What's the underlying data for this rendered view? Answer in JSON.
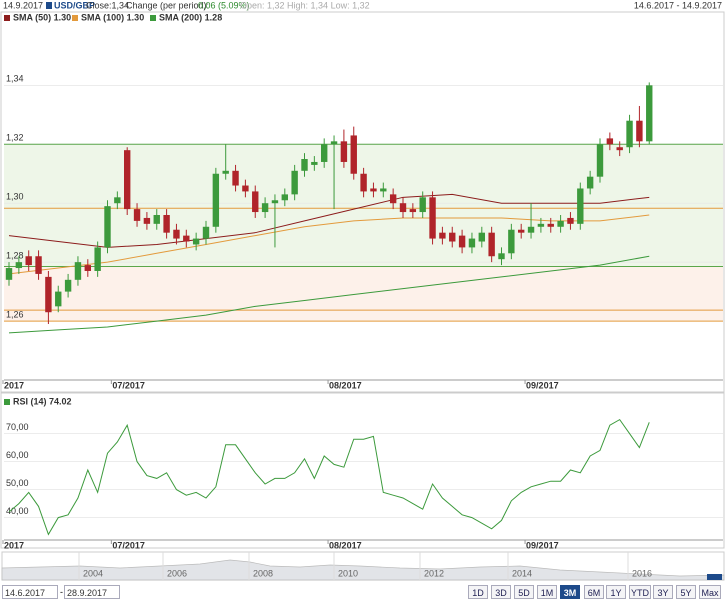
{
  "header": {
    "date": "14.9.2017",
    "symbol": "USD/GBP",
    "close": "Close:1,34",
    "change_label": "Change (per period):",
    "change": "0,06 (5.09%)",
    "ohl": "Open: 1,32 High: 1,34 Low: 1,32",
    "range": "14.6.2017 - 14.9.2017"
  },
  "chart_data": [
    {
      "type": "candlestick",
      "up_color": "#3c9a3c",
      "down_color": "#b0242a",
      "categories": [
        "2017",
        null,
        null,
        null,
        null,
        null,
        null,
        null,
        null,
        null,
        null,
        "07/2017",
        null,
        null,
        null,
        null,
        null,
        null,
        null,
        null,
        null,
        null,
        null,
        null,
        null,
        null,
        null,
        null,
        null,
        null,
        null,
        null,
        null,
        "08/2017",
        null,
        null,
        null,
        null,
        null,
        null,
        null,
        null,
        null,
        null,
        null,
        null,
        null,
        null,
        null,
        null,
        null,
        null,
        null,
        "09/2017",
        null,
        null,
        null,
        null,
        null,
        null,
        null,
        null,
        null,
        null,
        null,
        null
      ],
      "open": [
        1.274,
        1.278,
        1.282,
        1.282,
        1.275,
        1.265,
        1.27,
        1.274,
        1.279,
        1.277,
        1.285,
        1.3,
        1.318,
        1.298,
        1.295,
        1.293,
        1.296,
        1.291,
        1.289,
        1.286,
        1.288,
        1.292,
        1.31,
        1.311,
        1.306,
        1.304,
        1.297,
        1.3,
        1.301,
        1.303,
        1.311,
        1.313,
        1.314,
        1.32,
        1.321,
        1.323,
        1.31,
        1.305,
        1.304,
        1.303,
        1.3,
        1.298,
        1.297,
        1.302,
        1.29,
        1.29,
        1.289,
        1.285,
        1.287,
        1.29,
        1.281,
        1.283,
        1.291,
        1.29,
        1.292,
        1.293,
        1.292,
        1.295,
        1.293,
        1.305,
        1.309,
        1.322,
        1.319,
        1.319,
        1.328,
        1.321
      ],
      "high": [
        1.28,
        1.282,
        1.284,
        1.284,
        1.277,
        1.272,
        1.276,
        1.282,
        1.281,
        1.287,
        1.301,
        1.304,
        1.319,
        1.3,
        1.297,
        1.298,
        1.298,
        1.293,
        1.291,
        1.29,
        1.294,
        1.312,
        1.32,
        1.313,
        1.308,
        1.306,
        1.302,
        1.303,
        1.305,
        1.313,
        1.317,
        1.316,
        1.322,
        1.323,
        1.325,
        1.326,
        1.312,
        1.307,
        1.307,
        1.305,
        1.302,
        1.3,
        1.304,
        1.304,
        1.292,
        1.292,
        1.291,
        1.29,
        1.292,
        1.292,
        1.285,
        1.293,
        1.293,
        1.3,
        1.295,
        1.295,
        1.296,
        1.297,
        1.307,
        1.311,
        1.322,
        1.324,
        1.321,
        1.33,
        1.333,
        1.341
      ],
      "low": [
        1.272,
        1.276,
        1.277,
        1.274,
        1.259,
        1.263,
        1.268,
        1.272,
        1.275,
        1.275,
        1.283,
        1.298,
        1.296,
        1.292,
        1.291,
        1.291,
        1.288,
        1.286,
        1.285,
        1.284,
        1.286,
        1.29,
        1.308,
        1.304,
        1.302,
        1.295,
        1.295,
        1.285,
        1.299,
        1.301,
        1.309,
        1.311,
        1.312,
        1.298,
        1.312,
        1.308,
        1.302,
        1.302,
        1.302,
        1.298,
        1.295,
        1.295,
        1.295,
        1.286,
        1.286,
        1.285,
        1.283,
        1.283,
        1.285,
        1.28,
        1.279,
        1.281,
        1.288,
        1.288,
        1.29,
        1.29,
        1.29,
        1.291,
        1.291,
        1.303,
        1.307,
        1.318,
        1.316,
        1.317,
        1.319,
        1.32
      ],
      "close": [
        1.278,
        1.28,
        1.279,
        1.276,
        1.263,
        1.27,
        1.274,
        1.28,
        1.277,
        1.285,
        1.299,
        1.302,
        1.298,
        1.294,
        1.293,
        1.296,
        1.29,
        1.288,
        1.287,
        1.288,
        1.292,
        1.31,
        1.311,
        1.306,
        1.304,
        1.297,
        1.3,
        1.301,
        1.303,
        1.311,
        1.315,
        1.314,
        1.32,
        1.321,
        1.314,
        1.31,
        1.304,
        1.304,
        1.305,
        1.3,
        1.297,
        1.297,
        1.302,
        1.288,
        1.288,
        1.287,
        1.285,
        1.288,
        1.29,
        1.282,
        1.283,
        1.291,
        1.29,
        1.292,
        1.293,
        1.292,
        1.294,
        1.293,
        1.305,
        1.309,
        1.32,
        1.32,
        1.318,
        1.328,
        1.321,
        1.34
      ],
      "series": [
        {
          "name": "SMA (50) 1.30",
          "color": "#8c1c1c",
          "x": [
            0,
            5,
            10,
            15,
            20,
            25,
            30,
            35,
            40,
            45,
            50,
            55,
            60,
            65
          ],
          "values": [
            1.289,
            1.287,
            1.285,
            1.286,
            1.288,
            1.29,
            1.294,
            1.298,
            1.302,
            1.303,
            1.3,
            1.3,
            1.3,
            1.302
          ]
        },
        {
          "name": "SMA (100) 1.30",
          "color": "#e39a3c",
          "x": [
            0,
            5,
            10,
            15,
            20,
            25,
            30,
            35,
            40,
            45,
            50,
            55,
            60,
            65
          ],
          "values": [
            1.276,
            1.278,
            1.28,
            1.283,
            1.286,
            1.289,
            1.292,
            1.294,
            1.295,
            1.295,
            1.295,
            1.294,
            1.294,
            1.296
          ]
        },
        {
          "name": "SMA (200) 1.28",
          "color": "#3c9a3c",
          "x": [
            0,
            5,
            10,
            15,
            20,
            25,
            30,
            35,
            40,
            45,
            50,
            55,
            60,
            65
          ],
          "values": [
            1.256,
            1.257,
            1.258,
            1.26,
            1.262,
            1.265,
            1.267,
            1.269,
            1.271,
            1.273,
            1.275,
            1.277,
            1.279,
            1.282
          ]
        }
      ],
      "bands": [
        {
          "from": 1.32,
          "to": 1.2785,
          "color": "#eef6e8"
        },
        {
          "from": 1.2785,
          "to": 1.26,
          "color": "#fdf1ea"
        }
      ],
      "levels": [
        {
          "value": 1.32,
          "color": "#5aa64a"
        },
        {
          "value": 1.2785,
          "color": "#5aa64a"
        },
        {
          "value": 1.2983,
          "color": "#e39a3c"
        },
        {
          "value": 1.2637,
          "color": "#e39a3c"
        },
        {
          "value": 1.26,
          "color": "#e39a3c"
        }
      ],
      "ylim": [
        1.24,
        1.3615
      ],
      "yticks": [
        {
          "value": 1.26,
          "label": "1,26"
        },
        {
          "value": 1.28,
          "label": "1,28"
        },
        {
          "value": 1.3,
          "label": "1,30"
        },
        {
          "value": 1.32,
          "label": "1,32"
        },
        {
          "value": 1.34,
          "label": "1,34"
        }
      ],
      "grid": true
    },
    {
      "type": "line",
      "categories": [
        "2017",
        null,
        null,
        null,
        null,
        null,
        null,
        null,
        null,
        null,
        null,
        "07/2017",
        null,
        null,
        null,
        null,
        null,
        null,
        null,
        null,
        null,
        null,
        null,
        null,
        null,
        null,
        null,
        null,
        null,
        null,
        null,
        null,
        null,
        "08/2017",
        null,
        null,
        null,
        null,
        null,
        null,
        null,
        null,
        null,
        null,
        null,
        null,
        null,
        null,
        null,
        null,
        null,
        null,
        null,
        "09/2017",
        null,
        null,
        null,
        null,
        null,
        null,
        null,
        null,
        null,
        null,
        null,
        null
      ],
      "series": [
        {
          "name": "RSI (14) 74.02",
          "color": "#3c9a3c",
          "values": [
            42,
            45,
            49,
            44,
            34,
            40,
            41,
            47,
            57,
            49,
            63,
            67,
            73,
            60,
            55,
            54,
            56,
            50,
            48,
            49,
            47,
            51,
            66,
            66,
            61,
            56,
            52,
            54,
            54,
            56,
            61,
            54,
            62,
            59,
            58,
            68,
            68,
            69,
            49,
            48,
            47,
            45,
            43,
            52,
            47,
            44,
            41,
            40,
            38,
            36,
            39,
            46,
            49,
            51,
            52,
            53,
            53,
            57,
            56,
            62,
            64,
            73,
            75,
            70,
            65,
            74.02
          ]
        }
      ],
      "ylim": [
        32,
        82
      ],
      "yticks": [
        {
          "value": 40,
          "label": "40,00"
        },
        {
          "value": 50,
          "label": "50,00"
        },
        {
          "value": 60,
          "label": "60,00"
        },
        {
          "value": 70,
          "label": "70,00"
        }
      ],
      "grid": true
    }
  ],
  "navigator": {
    "years": [
      "2004",
      "2006",
      "2008",
      "2010",
      "2012",
      "2014",
      "2016"
    ]
  },
  "controls": {
    "from": "14.6.2017",
    "to": "28.9.2017",
    "separator": "-",
    "buttons": [
      "1D",
      "3D",
      "5D",
      "1M",
      "3M",
      "6M",
      "1Y",
      "YTD",
      "3Y",
      "5Y",
      "Max"
    ],
    "active": "3M"
  }
}
